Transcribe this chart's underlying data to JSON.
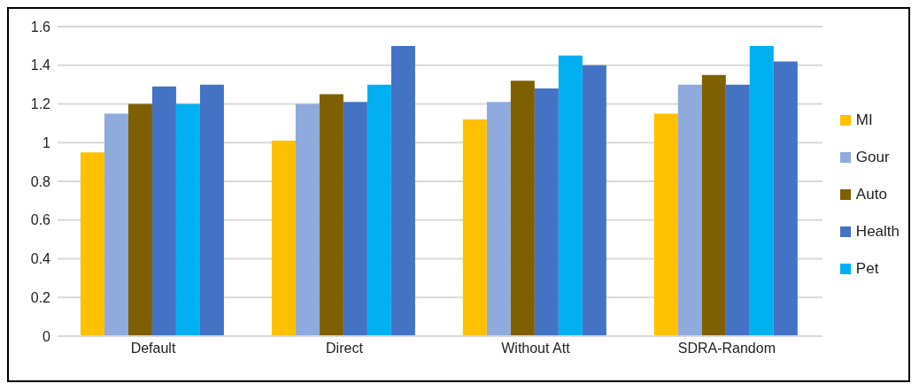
{
  "chart_data": {
    "type": "bar",
    "categories": [
      "Default",
      "Direct",
      "Without Att",
      "SDRA-Random"
    ],
    "series": [
      {
        "name": "MI",
        "color": "#ffc000",
        "values": [
          0.95,
          1.01,
          1.12,
          1.15
        ]
      },
      {
        "name": "Gour",
        "color": "#8faadc",
        "values": [
          1.15,
          1.2,
          1.21,
          1.3
        ]
      },
      {
        "name": "Auto",
        "color": "#7f6000",
        "values": [
          1.2,
          1.25,
          1.32,
          1.35
        ]
      },
      {
        "name": "Health",
        "color": "#4472c4",
        "values": [
          1.29,
          1.21,
          1.28,
          1.3
        ]
      },
      {
        "name": "Pet",
        "color": "#00b0f0",
        "values": [
          1.2,
          1.3,
          1.45,
          1.5
        ]
      },
      {
        "color": "#4472c4",
        "values": [
          1.3,
          1.5,
          1.4,
          1.42
        ]
      }
    ],
    "ylim": [
      0,
      1.6
    ],
    "yticks": [
      0,
      0.2,
      0.4,
      0.6,
      0.8,
      1,
      1.2,
      1.4,
      1.6
    ],
    "grid": "y",
    "legend": "right"
  }
}
